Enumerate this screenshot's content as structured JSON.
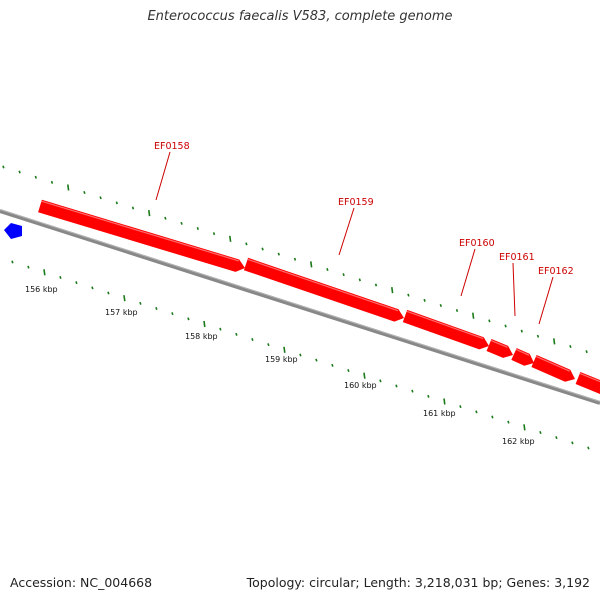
{
  "title": "Enterococcus faecalis V583, complete genome",
  "accession": "Accession: NC_004668",
  "summary": "Topology: circular; Length: 3,218,031 bp; Genes: 3,192",
  "colors": {
    "backbone": "#888888",
    "gene_forward": "#ff0000",
    "gene_other": "#0000ff",
    "ticks": "#1a7a1a",
    "gene_label": "#cc0000"
  },
  "kbp_labels": [
    "156 kbp",
    "157 kbp",
    "158 kbp",
    "159 kbp",
    "160 kbp",
    "161 kbp",
    "162 kbp"
  ],
  "genes": [
    {
      "label": "EF0158"
    },
    {
      "label": "EF0159"
    },
    {
      "label": "EF0160"
    },
    {
      "label": "EF0161"
    },
    {
      "label": "EF0162"
    }
  ]
}
